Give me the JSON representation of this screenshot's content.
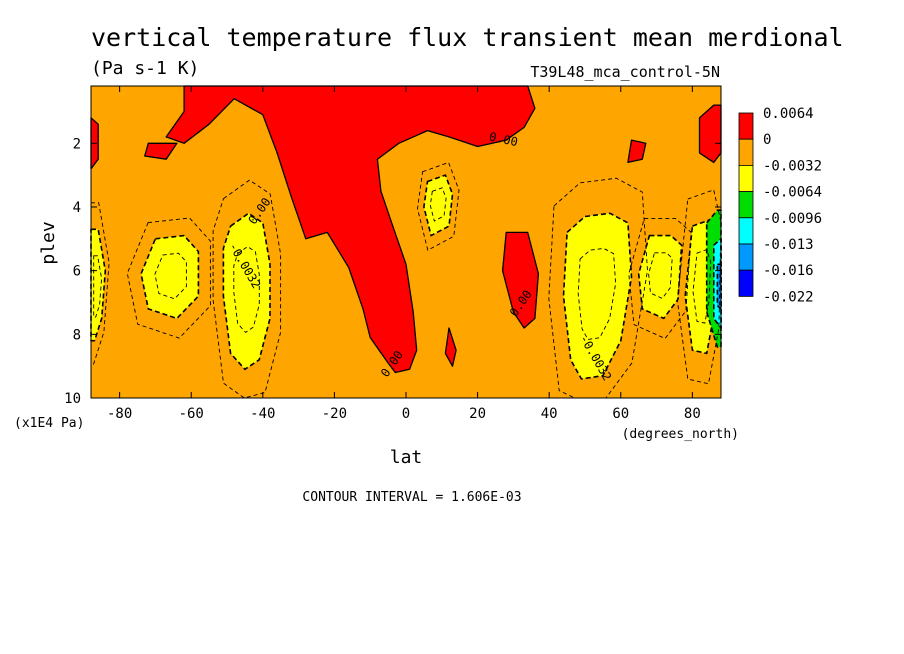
{
  "chart_data": {
    "type": "heatmap",
    "title": "vertical temperature flux transient mean merdional",
    "units": "(Pa s-1 K)",
    "dataset": "T39L48_mca_control-5N",
    "xlabel": "lat",
    "x_units": "(degrees_north)",
    "ylabel": "plev",
    "y_units": "(x1E4 Pa)",
    "xlim": [
      -88,
      88
    ],
    "ylim": [
      10,
      0.2
    ],
    "x_ticks": [
      "-80",
      "-60",
      "-40",
      "-20",
      "0",
      "20",
      "40",
      "60",
      "80"
    ],
    "x_tick_values": [
      -80,
      -60,
      -40,
      -20,
      0,
      20,
      40,
      60,
      80
    ],
    "y_ticks": [
      "2",
      "4",
      "6",
      "8",
      "10"
    ],
    "y_tick_values": [
      2,
      4,
      6,
      8,
      10
    ],
    "contour_interval_text": "CONTOUR INTERVAL = 1.606E-03",
    "colorbar": {
      "labels": [
        "0.0064",
        "0",
        "-0.0032",
        "-0.0064",
        "-0.0096",
        "-0.013",
        "-0.016",
        "-0.022"
      ],
      "colors": [
        "#ff0000",
        "#ffa500",
        "#ffff00",
        "#00dd00",
        "#00ffff",
        "#0099ff",
        "#0000ff"
      ]
    },
    "contour_labels": [
      {
        "text": "0.00",
        "lat": 27,
        "plev": 2.0
      },
      {
        "text": "0.00",
        "lat": -40,
        "plev": 4.2
      },
      {
        "text": "-0.0032",
        "lat": -46,
        "plev": 5.9
      },
      {
        "text": "0.00",
        "lat": 33,
        "plev": 7.1
      },
      {
        "text": "-0.0032",
        "lat": 52,
        "plev": 8.8
      },
      {
        "text": "0.00",
        "lat": -3,
        "plev": 9.0
      }
    ],
    "regions": [
      {
        "name": "red-polar-south",
        "level": 0.0064,
        "points": [
          [
            -88,
            1.2
          ],
          [
            -86,
            1.4
          ],
          [
            -86,
            2.5
          ],
          [
            -88,
            2.8
          ]
        ]
      },
      {
        "name": "red-tropopause-main",
        "level": 0.0064,
        "points": [
          [
            -62,
            0.2
          ],
          [
            34,
            0.2
          ],
          [
            36,
            0.9
          ],
          [
            33,
            1.5
          ],
          [
            28,
            1.9
          ],
          [
            20,
            2.1
          ],
          [
            12,
            1.8
          ],
          [
            6,
            1.6
          ],
          [
            -2,
            2.0
          ],
          [
            -8,
            2.5
          ],
          [
            -7,
            3.5
          ],
          [
            -4,
            4.5
          ],
          [
            0,
            5.8
          ],
          [
            2,
            7.3
          ],
          [
            3,
            8.5
          ],
          [
            1,
            9.1
          ],
          [
            -3,
            9.2
          ],
          [
            -5,
            8.9
          ],
          [
            -10,
            8.1
          ],
          [
            -12,
            7.2
          ],
          [
            -16,
            5.9
          ],
          [
            -22,
            4.8
          ],
          [
            -28,
            5.0
          ],
          [
            -32,
            3.7
          ],
          [
            -36,
            2.3
          ],
          [
            -40,
            1.1
          ],
          [
            -48,
            0.6
          ],
          [
            -55,
            1.4
          ],
          [
            -62,
            2.0
          ],
          [
            -67,
            1.8
          ],
          [
            -62,
            1.0
          ]
        ]
      },
      {
        "name": "red-patch-sh",
        "level": 0.0064,
        "points": [
          [
            -72,
            2.0
          ],
          [
            -64,
            2.0
          ],
          [
            -67,
            2.5
          ],
          [
            -73,
            2.4
          ]
        ]
      },
      {
        "name": "red-patch-eq",
        "level": 0.0064,
        "points": [
          [
            12,
            7.8
          ],
          [
            14,
            8.5
          ],
          [
            13,
            9.0
          ],
          [
            11,
            8.6
          ]
        ]
      },
      {
        "name": "red-nh-mid",
        "level": 0.0064,
        "points": [
          [
            28,
            4.8
          ],
          [
            34,
            4.8
          ],
          [
            37,
            6.1
          ],
          [
            36,
            7.5
          ],
          [
            33,
            7.8
          ],
          [
            30,
            7.3
          ],
          [
            27,
            6.0
          ]
        ]
      },
      {
        "name": "red-nh-upper",
        "level": 0.0064,
        "points": [
          [
            63,
            1.9
          ],
          [
            67,
            2.0
          ],
          [
            66,
            2.5
          ],
          [
            62,
            2.6
          ]
        ]
      },
      {
        "name": "red-polar-north",
        "level": 0.0064,
        "points": [
          [
            82,
            1.2
          ],
          [
            86,
            0.8
          ],
          [
            88,
            0.8
          ],
          [
            88,
            2.3
          ],
          [
            86,
            2.6
          ],
          [
            82,
            2.3
          ]
        ]
      },
      {
        "name": "yellow-sh-polar",
        "level": -0.0032,
        "points": [
          [
            -88,
            4.7
          ],
          [
            -86,
            4.7
          ],
          [
            -84,
            6.0
          ],
          [
            -85,
            7.5
          ],
          [
            -87,
            8.2
          ],
          [
            -88,
            8.2
          ]
        ]
      },
      {
        "name": "yellow-sh-mid-left",
        "level": -0.0032,
        "points": [
          [
            -70,
            5.0
          ],
          [
            -62,
            4.9
          ],
          [
            -58,
            5.4
          ],
          [
            -58,
            6.8
          ],
          [
            -64,
            7.5
          ],
          [
            -72,
            7.2
          ],
          [
            -74,
            6.1
          ]
        ]
      },
      {
        "name": "yellow-sh-jet",
        "level": -0.0032,
        "points": [
          [
            -49,
            4.6
          ],
          [
            -44,
            4.2
          ],
          [
            -40,
            4.5
          ],
          [
            -38,
            5.8
          ],
          [
            -38,
            7.5
          ],
          [
            -41,
            8.8
          ],
          [
            -45,
            9.1
          ],
          [
            -49,
            8.6
          ],
          [
            -51,
            6.8
          ],
          [
            -51,
            5.3
          ]
        ]
      },
      {
        "name": "yellow-eq-upper",
        "level": -0.0032,
        "points": [
          [
            6,
            3.2
          ],
          [
            11,
            3.0
          ],
          [
            13,
            3.6
          ],
          [
            12,
            4.6
          ],
          [
            7,
            4.9
          ],
          [
            5,
            4.0
          ]
        ]
      },
      {
        "name": "yellow-nh-jet",
        "level": -0.0032,
        "points": [
          [
            45,
            4.8
          ],
          [
            50,
            4.3
          ],
          [
            57,
            4.2
          ],
          [
            62,
            4.5
          ],
          [
            63,
            6.2
          ],
          [
            60,
            8.2
          ],
          [
            55,
            9.3
          ],
          [
            49,
            9.4
          ],
          [
            46,
            8.8
          ],
          [
            44,
            6.8
          ]
        ]
      },
      {
        "name": "yellow-nh-mid",
        "level": -0.0032,
        "points": [
          [
            68,
            4.9
          ],
          [
            74,
            4.9
          ],
          [
            77,
            5.2
          ],
          [
            76,
            6.9
          ],
          [
            72,
            7.5
          ],
          [
            66,
            7.2
          ],
          [
            65,
            6.1
          ]
        ]
      },
      {
        "name": "yellow-nh-polar",
        "level": -0.0032,
        "points": [
          [
            80,
            4.6
          ],
          [
            85,
            4.4
          ],
          [
            87,
            5.1
          ],
          [
            86,
            7.4
          ],
          [
            84,
            8.6
          ],
          [
            80,
            8.5
          ],
          [
            78,
            6.8
          ]
        ]
      },
      {
        "name": "green-nh-polar",
        "level": -0.0064,
        "points": [
          [
            84,
            4.5
          ],
          [
            87,
            4.1
          ],
          [
            88,
            4.1
          ],
          [
            88,
            8.4
          ],
          [
            87,
            8.4
          ],
          [
            84,
            7.3
          ]
        ]
      },
      {
        "name": "cyan-nh-polar",
        "level": -0.0096,
        "points": [
          [
            86,
            5.2
          ],
          [
            88,
            5.0
          ],
          [
            88,
            7.8
          ],
          [
            86,
            7.5
          ]
        ]
      },
      {
        "name": "blue-nh-polar",
        "level": -0.013,
        "points": [
          [
            87,
            5.8
          ],
          [
            88,
            5.8
          ],
          [
            88,
            7.2
          ],
          [
            87,
            7.1
          ]
        ]
      }
    ]
  }
}
